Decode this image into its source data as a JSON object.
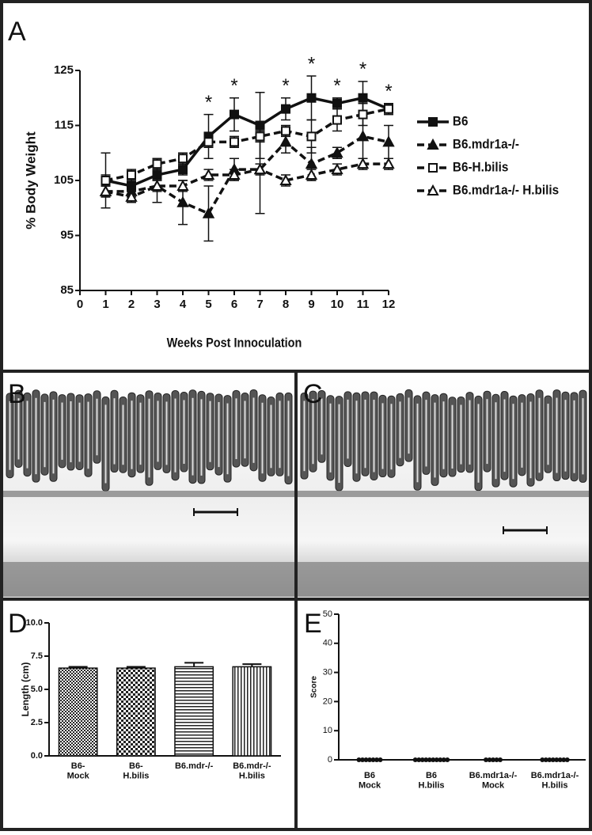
{
  "chart_data": [
    {
      "type": "line",
      "label": "A",
      "xlabel": "Weeks Post Innoculation",
      "ylabel": "% Body Weight",
      "x": [
        1,
        2,
        3,
        4,
        5,
        6,
        7,
        8,
        9,
        10,
        11,
        12
      ],
      "xlim": [
        0,
        12
      ],
      "xticks": [
        0,
        1,
        2,
        3,
        4,
        5,
        6,
        7,
        8,
        9,
        10,
        11,
        12
      ],
      "ylim": [
        85,
        125
      ],
      "yticks": [
        85,
        95,
        105,
        115,
        125
      ],
      "series": [
        {
          "name": "B6",
          "color": "#111111",
          "dashed": false,
          "marker": "square",
          "filled": true,
          "values": [
            105,
            104,
            106,
            107,
            113,
            117,
            115,
            118,
            120,
            119,
            120,
            118
          ],
          "errors": [
            5,
            1,
            1,
            1,
            4,
            3,
            6,
            2,
            4,
            1,
            3,
            1
          ]
        },
        {
          "name": "B6.mdr1a-/-",
          "color": "#111111",
          "dashed": true,
          "marker": "triangle",
          "filled": true,
          "values": [
            103,
            103,
            104,
            101,
            99,
            107,
            107,
            112,
            108,
            110,
            113,
            112
          ],
          "errors": [
            1,
            1,
            3,
            4,
            5,
            2,
            8,
            2,
            3,
            1,
            4,
            3
          ]
        },
        {
          "name": "B6-H.bilis",
          "color": "#111111",
          "dashed": true,
          "marker": "square",
          "filled": false,
          "values": [
            105,
            106,
            108,
            109,
            112,
            112,
            113,
            114,
            113,
            116,
            117,
            118
          ],
          "errors": [
            1,
            1,
            1,
            1,
            1,
            1,
            1,
            1,
            3,
            2,
            2,
            1
          ]
        },
        {
          "name": "B6.mdr1a-/- H.bilis",
          "color": "#111111",
          "dashed": true,
          "marker": "triangle",
          "filled": false,
          "values": [
            103,
            102,
            104,
            104,
            106,
            106,
            107,
            105,
            106,
            107,
            108,
            108
          ],
          "errors": [
            1,
            1,
            1,
            1,
            1,
            1,
            1,
            1,
            1,
            1,
            1,
            1
          ]
        }
      ],
      "annotations": [
        {
          "x": 5,
          "text": "*"
        },
        {
          "x": 6,
          "text": "*"
        },
        {
          "x": 8,
          "text": "*"
        },
        {
          "x": 9,
          "text": "*"
        },
        {
          "x": 10,
          "text": "*"
        },
        {
          "x": 11,
          "text": "*"
        },
        {
          "x": 12,
          "text": "*"
        }
      ]
    },
    {
      "type": "bar",
      "label": "D",
      "ylabel": "Length (cm)",
      "categories": [
        "B6-\nMock",
        "B6-\nH.bilis",
        "B6.mdr-/-",
        "B6.mdr-/-\nH.bilis"
      ],
      "values": [
        6.6,
        6.6,
        6.7,
        6.7
      ],
      "errors": [
        0.1,
        0.1,
        0.3,
        0.2
      ],
      "ylim": [
        0,
        10
      ],
      "yticks": [
        {
          "value": 0,
          "label": "0.0"
        },
        2.5,
        {
          "value": 5,
          "label": "5.0"
        },
        7.5,
        {
          "value": 10,
          "label": "10.0"
        }
      ]
    },
    {
      "type": "dot",
      "label": "E",
      "ylabel": "Score",
      "categories": [
        "B6\nMock",
        "B6\nH.bilis",
        "B6.mdr1a-/-\nMock",
        "B6.mdr1a-/-\nH.bilis"
      ],
      "values": [
        [
          0,
          0,
          0,
          0,
          0,
          0,
          0
        ],
        [
          0,
          0,
          0,
          0,
          0,
          0,
          0,
          0,
          0,
          0
        ],
        [
          0,
          0,
          0,
          0,
          0
        ],
        [
          0,
          0,
          0,
          0,
          0,
          0,
          0,
          0
        ]
      ],
      "ylim": [
        0,
        50
      ],
      "yticks": [
        0,
        10,
        20,
        30,
        40,
        50
      ]
    }
  ],
  "images": [
    {
      "label": "B"
    },
    {
      "label": "C"
    }
  ]
}
